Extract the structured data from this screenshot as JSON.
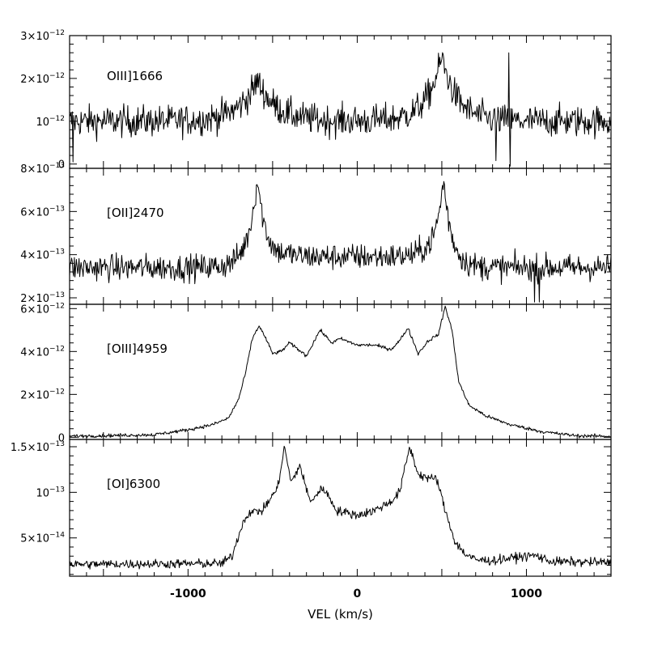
{
  "chart_data": {
    "type": "line",
    "xlabel": "VEL (km/s)",
    "xlim": [
      -1700,
      1500
    ],
    "x_ticks": [
      {
        "value": -1000,
        "label": "-1000"
      },
      {
        "value": 0,
        "label": "0"
      },
      {
        "value": 1000,
        "label": "1000"
      }
    ],
    "grid": false,
    "panels": [
      {
        "name": "OIII]1666",
        "ylim": [
          -1e-13,
          3e-12
        ],
        "y_ticks": [
          {
            "value": 0,
            "label": "0",
            "sup": ""
          },
          {
            "value": 1e-12,
            "label": "10",
            "sup": "−12"
          },
          {
            "value": 2e-12,
            "label": "2×10",
            "sup": "−12"
          },
          {
            "value": 3e-12,
            "label": "3×10",
            "sup": "−12"
          }
        ],
        "baseline": 1e-12,
        "noise": 1.8e-13,
        "peaks": [
          {
            "v": -590,
            "h": 9.5e-13,
            "w": 110
          },
          {
            "v": 500,
            "h": 1.5e-12,
            "w": 90
          }
        ],
        "features": [
          {
            "v": -1680,
            "value": 5e-14
          },
          {
            "v": 820,
            "value": 8e-14
          },
          {
            "v": 895,
            "value": 2.6e-12
          },
          {
            "v": 905,
            "value": -5e-14
          },
          {
            "v": 1000,
            "value": 1e-12
          }
        ]
      },
      {
        "name": "[OII]2470",
        "ylim": [
          1.7e-13,
          8e-13
        ],
        "y_ticks": [
          {
            "value": 2e-13,
            "label": "2×10",
            "sup": "−13"
          },
          {
            "value": 4e-13,
            "label": "4×10",
            "sup": "−13"
          },
          {
            "value": 6e-13,
            "label": "6×10",
            "sup": "−13"
          },
          {
            "value": 8e-13,
            "label": "8×10",
            "sup": "−13"
          }
        ],
        "baseline": 3.4e-13,
        "noise": 3e-14,
        "peaks": [
          {
            "v": -590,
            "h": 4.2e-13,
            "w": 55
          },
          {
            "v": 510,
            "h": 4e-13,
            "w": 50
          }
        ],
        "plateau": {
          "from": -560,
          "to": 540,
          "h": 5e-14
        },
        "features": [
          {
            "v": 1050,
            "value": 1.8e-13
          },
          {
            "v": 1075,
            "value": 1.8e-13
          }
        ]
      },
      {
        "name": "[OIII]4959",
        "ylim": [
          -1e-13,
          6.2e-12
        ],
        "y_ticks": [
          {
            "value": 0,
            "label": "0",
            "sup": ""
          },
          {
            "value": 2e-12,
            "label": "2×10",
            "sup": "−12"
          },
          {
            "value": 4e-12,
            "label": "4×10",
            "sup": "−12"
          },
          {
            "value": 6e-12,
            "label": "6×10",
            "sup": "−12"
          }
        ],
        "profile": [
          [
            -1700,
            5e-14
          ],
          [
            -1200,
            1.2e-13
          ],
          [
            -1000,
            3.5e-13
          ],
          [
            -850,
            6e-13
          ],
          [
            -760,
            9e-13
          ],
          [
            -700,
            1.8e-12
          ],
          [
            -660,
            3e-12
          ],
          [
            -620,
            4.6e-12
          ],
          [
            -580,
            5.2e-12
          ],
          [
            -540,
            4.6e-12
          ],
          [
            -500,
            3.9e-12
          ],
          [
            -450,
            4e-12
          ],
          [
            -400,
            4.4e-12
          ],
          [
            -350,
            4.1e-12
          ],
          [
            -300,
            3.8e-12
          ],
          [
            -220,
            5e-12
          ],
          [
            -150,
            4.4e-12
          ],
          [
            -100,
            4.6e-12
          ],
          [
            0,
            4.3e-12
          ],
          [
            100,
            4.3e-12
          ],
          [
            200,
            4.1e-12
          ],
          [
            250,
            4.5e-12
          ],
          [
            300,
            5.1e-12
          ],
          [
            360,
            3.9e-12
          ],
          [
            420,
            4.5e-12
          ],
          [
            480,
            4.8e-12
          ],
          [
            520,
            6.1e-12
          ],
          [
            560,
            5e-12
          ],
          [
            600,
            2.6e-12
          ],
          [
            660,
            1.5e-12
          ],
          [
            760,
            1e-12
          ],
          [
            900,
            6e-13
          ],
          [
            1100,
            2.5e-13
          ],
          [
            1300,
            7e-14
          ],
          [
            1500,
            5e-14
          ]
        ],
        "noise": 4e-14
      },
      {
        "name": "[OI]6300",
        "ylim": [
          8e-15,
          1.58e-13
        ],
        "y_ticks": [
          {
            "value": 5e-14,
            "label": "5×10",
            "sup": "−14"
          },
          {
            "value": 1e-13,
            "label": "10",
            "sup": "−13"
          },
          {
            "value": 1.5e-13,
            "label": "1.5×10",
            "sup": "−13"
          }
        ],
        "profile": [
          [
            -1700,
            2.1e-14
          ],
          [
            -800,
            2.2e-14
          ],
          [
            -740,
            3e-14
          ],
          [
            -680,
            6.5e-14
          ],
          [
            -640,
            7.8e-14
          ],
          [
            -560,
            8e-14
          ],
          [
            -470,
            1.05e-13
          ],
          [
            -430,
            1.5e-13
          ],
          [
            -390,
            1.1e-13
          ],
          [
            -340,
            1.3e-13
          ],
          [
            -280,
            9e-14
          ],
          [
            -200,
            1.05e-13
          ],
          [
            -120,
            8e-14
          ],
          [
            0,
            7.5e-14
          ],
          [
            100,
            8e-14
          ],
          [
            200,
            9e-14
          ],
          [
            250,
            1e-13
          ],
          [
            310,
            1.5e-13
          ],
          [
            360,
            1.2e-13
          ],
          [
            430,
            1.15e-13
          ],
          [
            470,
            1.15e-13
          ],
          [
            520,
            8e-14
          ],
          [
            580,
            4.5e-14
          ],
          [
            640,
            3.2e-14
          ],
          [
            700,
            2.6e-14
          ],
          [
            800,
            2.5e-14
          ],
          [
            950,
            2.9e-14
          ],
          [
            1050,
            3.1e-14
          ],
          [
            1150,
            2.4e-14
          ],
          [
            1500,
            2.3e-14
          ]
        ],
        "noise": 2.5e-15
      }
    ]
  }
}
